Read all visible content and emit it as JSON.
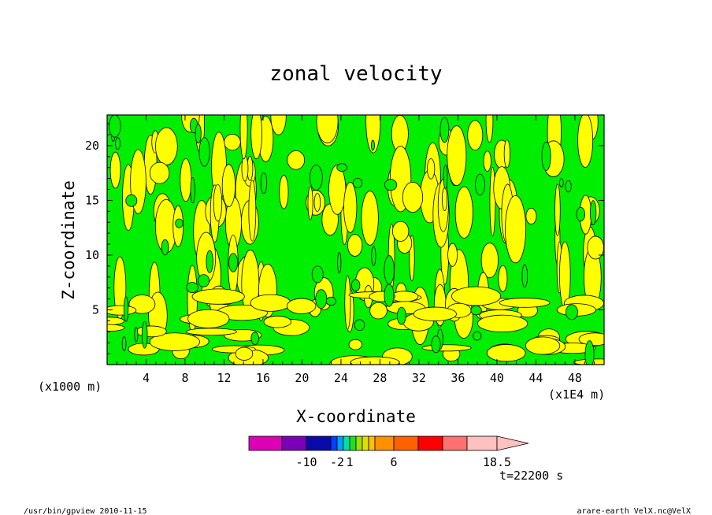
{
  "chart_data": {
    "type": "heatmap",
    "title": "zonal velocity",
    "xlabel": "X-coordinate",
    "ylabel": "Z-coordinate",
    "x_unit_left": "(x1000 m)",
    "x_unit_right": "(x1E4 m)",
    "xlim": [
      0,
      51
    ],
    "ylim": [
      0,
      22.8
    ],
    "x_ticks": [
      4,
      8,
      12,
      16,
      20,
      24,
      28,
      32,
      36,
      40,
      44,
      48
    ],
    "x_tick_labels": [
      "4",
      "8",
      "12",
      "16",
      "20",
      "24",
      "28",
      "32",
      "36",
      "40",
      "44",
      "48"
    ],
    "y_ticks": [
      5,
      10,
      15,
      20
    ],
    "y_tick_labels": [
      "5",
      "10",
      "15",
      "20"
    ],
    "fill_colors": [
      "#ffff00",
      "#00ee00"
    ],
    "colorbar": {
      "colors": [
        "#dd00b4",
        "#7c00b8",
        "#0a0aa8",
        "#0040ff",
        "#00a0ff",
        "#00e0a0",
        "#20e020",
        "#a0e000",
        "#e0e000",
        "#ffc000",
        "#ff9000",
        "#ff6000",
        "#ff0000",
        "#ff7070",
        "#ffc0c0"
      ],
      "labels": [
        "-10",
        "-2",
        "1",
        "6",
        "18.5"
      ]
    },
    "annotation": "t=22200 s"
  },
  "footer": {
    "left": "/usr/bin/gpview  2010-11-15",
    "right": "arare-earth_VelX.nc@VelX"
  }
}
